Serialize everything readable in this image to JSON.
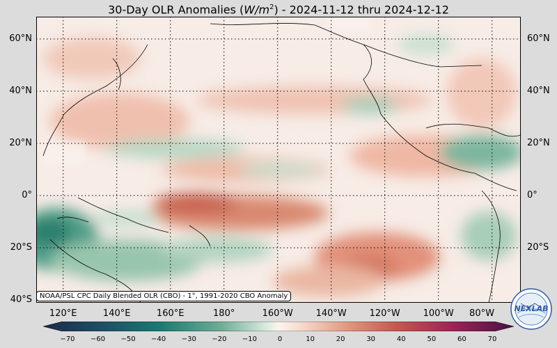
{
  "title_prefix": "30-Day OLR Anomalies (",
  "title_unit": "W/m",
  "title_exp": "2",
  "title_suffix": ") - 2024-11-12 thru 2024-12-12",
  "lat_labels": [
    "60°N",
    "40°N",
    "20°N",
    "0°",
    "20°S",
    "40°S"
  ],
  "lon_labels": [
    "120°E",
    "140°E",
    "160°E",
    "180°",
    "160°W",
    "140°W",
    "120°W",
    "100°W",
    "80°W"
  ],
  "colorbar_ticks": [
    "−70",
    "−60",
    "−50",
    "−40",
    "−30",
    "−20",
    "−10",
    "0",
    "10",
    "20",
    "30",
    "40",
    "50",
    "60",
    "70"
  ],
  "credit": "NOAA/PSL CPC Daily Blended OLR (CBO) - 1°, 1991-2020 CBO Anomaly",
  "logo_text": "NEXLAB",
  "colors": {
    "neg_strong": "#0d5e52",
    "neg": "#3a9a7c",
    "neutral": "#fbf3ee",
    "pos": "#e9a189",
    "pos_strong": "#9b1b4e"
  }
}
